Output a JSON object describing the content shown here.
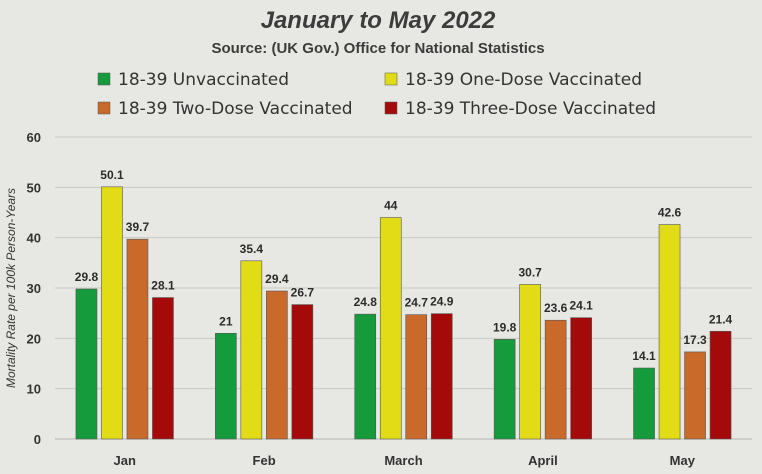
{
  "chart_data": {
    "type": "bar",
    "title": "January to May 2022",
    "subtitle": "Source: (UK Gov.) Office for National Statistics",
    "xlabel": "",
    "ylabel": "Mortality Rate per 100k Person-Years",
    "ylim": [
      0,
      60
    ],
    "yticks": [
      0,
      10,
      20,
      30,
      40,
      50,
      60
    ],
    "grid": true,
    "legend_position": "top",
    "categories": [
      "Jan",
      "Feb",
      "March",
      "April",
      "May"
    ],
    "series": [
      {
        "name": "18-39 Unvaccinated",
        "color": "#159a3c",
        "values": [
          29.8,
          21,
          24.8,
          19.8,
          14.1
        ],
        "labels": [
          "29.8",
          "21",
          "24.8",
          "19.8",
          "14.1"
        ]
      },
      {
        "name": "18-39 One-Dose Vaccinated",
        "color": "#e2dc16",
        "values": [
          50.1,
          35.4,
          44,
          30.7,
          42.6
        ],
        "labels": [
          "50.1",
          "35.4",
          "44",
          "30.7",
          "42.6"
        ]
      },
      {
        "name": "18-39 Two-Dose Vaccinated",
        "color": "#c96a2b",
        "values": [
          39.7,
          29.4,
          24.7,
          23.6,
          17.3
        ],
        "labels": [
          "39.7",
          "29.4",
          "24.7",
          "23.6",
          "17.3"
        ]
      },
      {
        "name": "18-39 Three-Dose Vaccinated",
        "color": "#a50a0a",
        "values": [
          28.1,
          26.7,
          24.9,
          24.1,
          21.4
        ],
        "labels": [
          "28.1",
          "26.7",
          "24.9",
          "24.1",
          "21.4"
        ]
      }
    ]
  }
}
